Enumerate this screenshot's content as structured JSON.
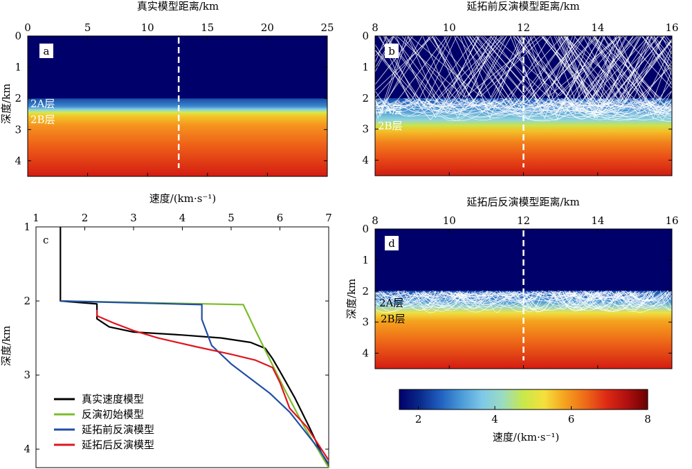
{
  "figure": {
    "colorbar": {
      "label": "速度/(km·s⁻¹)",
      "ticks": [
        2,
        4,
        6,
        8
      ],
      "range": [
        1.5,
        8
      ],
      "colormap": [
        "#00006a",
        "#0a2a8a",
        "#2060c0",
        "#4a9ad8",
        "#7ec8e8",
        "#9adcc0",
        "#c8e84a",
        "#f5e03c",
        "#f5a21e",
        "#ee6a18",
        "#dd2a14",
        "#b01010",
        "#6a0000"
      ]
    },
    "panel_a": {
      "letter": "a",
      "title": "真实模型距离/km",
      "ylabel": "深度/km",
      "xticks": [
        0,
        5,
        10,
        15,
        20,
        25
      ],
      "yticks": [
        0,
        1,
        2,
        3,
        4
      ],
      "xlim": [
        0,
        25
      ],
      "ylim": [
        0,
        4.5
      ],
      "dashed_line_x": 12.6,
      "layer_labels": [
        "2A层",
        "2B层"
      ]
    },
    "panel_b": {
      "letter": "b",
      "title": "延拓前反演模型距离/km",
      "xticks": [
        8,
        10,
        12,
        14,
        16
      ],
      "yticks": [
        0,
        1,
        2,
        3,
        4
      ],
      "xlim": [
        8,
        16
      ],
      "ylim": [
        0,
        4.5
      ],
      "dashed_line_x": 12,
      "layer_labels": [
        "2A层",
        "2B层"
      ]
    },
    "panel_d": {
      "letter": "d",
      "title": "延拓后反演模型距离/km",
      "ylabel": "深度/km",
      "xticks": [
        8,
        10,
        12,
        14,
        16
      ],
      "yticks": [
        0,
        1,
        2,
        3,
        4
      ],
      "xlim": [
        8,
        16
      ],
      "ylim": [
        0,
        4.5
      ],
      "dashed_line_x": 12,
      "layer_labels": [
        "2A层",
        "2B层"
      ]
    }
  },
  "chart_data": {
    "type": "line",
    "panel_letter": "c",
    "xlabel": "速度/(km·s⁻¹)",
    "ylabel": "深度/km",
    "xlim": [
      1,
      7
    ],
    "ylim": [
      1,
      4.25
    ],
    "xticks": [
      1,
      2,
      3,
      4,
      5,
      6,
      7
    ],
    "yticks": [
      1,
      2,
      3,
      4
    ],
    "legend_position": "bottom-left",
    "series": [
      {
        "name": "真实速度模型",
        "color": "#000000",
        "points": [
          [
            1.5,
            1.0
          ],
          [
            1.5,
            2.0
          ],
          [
            2.25,
            2.04
          ],
          [
            2.25,
            2.24
          ],
          [
            2.5,
            2.35
          ],
          [
            3.0,
            2.42
          ],
          [
            4.0,
            2.46
          ],
          [
            4.8,
            2.5
          ],
          [
            5.4,
            2.56
          ],
          [
            5.7,
            2.64
          ],
          [
            5.85,
            2.78
          ],
          [
            6.0,
            2.95
          ],
          [
            6.3,
            3.3
          ],
          [
            6.6,
            3.7
          ],
          [
            6.85,
            4.05
          ],
          [
            7.0,
            4.25
          ]
        ]
      },
      {
        "name": "反演初始模型",
        "color": "#7cbd2a",
        "points": [
          [
            1.5,
            2.0
          ],
          [
            5.25,
            2.05
          ],
          [
            5.5,
            2.4
          ],
          [
            5.8,
            2.8
          ],
          [
            6.1,
            3.2
          ],
          [
            6.5,
            3.7
          ],
          [
            7.0,
            4.25
          ]
        ]
      },
      {
        "name": "延拓前反演模型",
        "color": "#1f4ea6",
        "points": [
          [
            1.5,
            2.0
          ],
          [
            4.4,
            2.05
          ],
          [
            4.4,
            2.25
          ],
          [
            4.6,
            2.6
          ],
          [
            5.0,
            2.85
          ],
          [
            5.4,
            3.05
          ],
          [
            5.8,
            3.25
          ],
          [
            6.2,
            3.5
          ],
          [
            6.5,
            3.75
          ],
          [
            6.8,
            4.0
          ],
          [
            7.0,
            4.2
          ]
        ]
      },
      {
        "name": "延拓后反演模型",
        "color": "#e0141e",
        "points": [
          [
            2.25,
            2.12
          ],
          [
            2.25,
            2.2
          ],
          [
            2.6,
            2.3
          ],
          [
            3.0,
            2.4
          ],
          [
            3.5,
            2.5
          ],
          [
            4.3,
            2.62
          ],
          [
            5.0,
            2.72
          ],
          [
            5.5,
            2.8
          ],
          [
            5.85,
            2.9
          ],
          [
            6.0,
            3.1
          ],
          [
            6.2,
            3.45
          ],
          [
            6.55,
            3.7
          ],
          [
            6.85,
            4.0
          ],
          [
            7.0,
            4.15
          ]
        ]
      }
    ]
  }
}
